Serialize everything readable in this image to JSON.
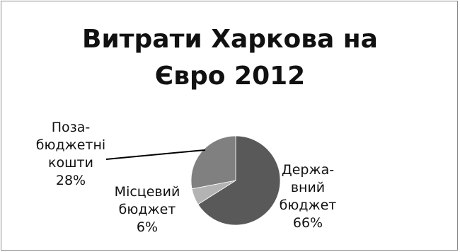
{
  "chart_data": {
    "type": "pie",
    "title": "Витрати Харкова на Євро 2012",
    "title_lines": [
      "Витрати Харкова на",
      "Євро 2012"
    ],
    "slices": [
      {
        "name": "Державний бюджет",
        "value": 66,
        "color": "#595959",
        "label_lines": [
          "Держа-",
          "вний",
          "бюджет",
          "66%"
        ]
      },
      {
        "name": "Місцевий бюджет",
        "value": 6,
        "color": "#b3b3b3",
        "label_lines": [
          "Місцевий",
          "бюджет",
          "6%"
        ]
      },
      {
        "name": "Позабюджетні кошти",
        "value": 28,
        "color": "#808080",
        "label_lines": [
          "Поза-",
          "бюджетні",
          "кошти",
          "28%"
        ]
      }
    ],
    "start_angle_deg": 0,
    "direction": "clockwise",
    "legend": "none"
  }
}
